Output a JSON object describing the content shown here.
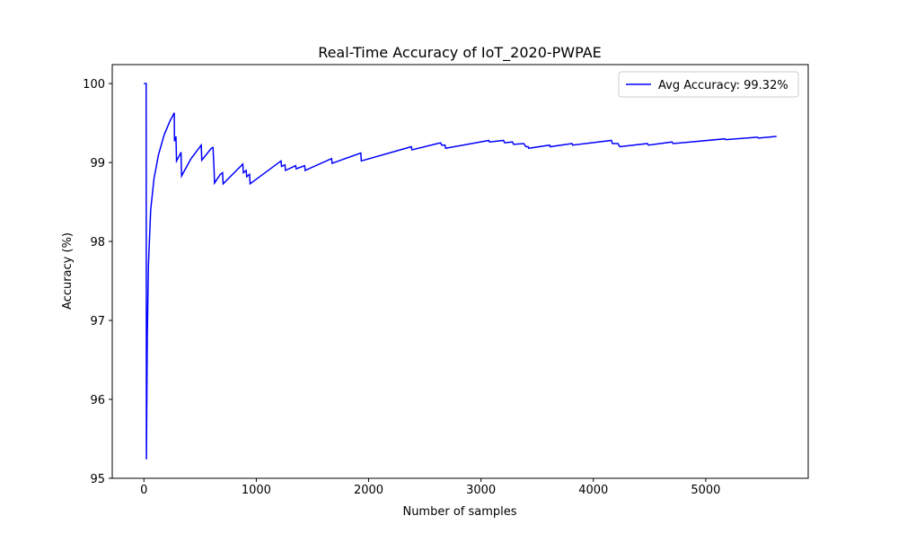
{
  "chart_data": {
    "type": "line",
    "title": "Real-Time Accuracy of IoT_2020-PWPAE",
    "x_label": "Number of samples",
    "y_label": "Accuracy (%)",
    "x": [
      0,
      20,
      22,
      30,
      40,
      60,
      90,
      130,
      180,
      230,
      270,
      272,
      285,
      290,
      320,
      330,
      335,
      420,
      510,
      515,
      600,
      615,
      625,
      628,
      680,
      700,
      705,
      880,
      885,
      910,
      915,
      940,
      945,
      1220,
      1225,
      1255,
      1260,
      1350,
      1355,
      1430,
      1435,
      1670,
      1675,
      1930,
      1935,
      2380,
      2385,
      2640,
      2650,
      2680,
      2685,
      3070,
      3075,
      3200,
      3210,
      3280,
      3290,
      3380,
      3400,
      3420,
      3425,
      3610,
      3615,
      3810,
      3815,
      4160,
      4170,
      4220,
      4230,
      4235,
      4480,
      4490,
      4700,
      4710,
      5170,
      5180,
      5460,
      5470,
      5630
    ],
    "series": [
      {
        "name": "Avg Accuracy: 99.32%",
        "color": "#0000ff",
        "values": [
          100,
          100,
          95.24,
          96.8,
          97.7,
          98.4,
          98.8,
          99.1,
          99.35,
          99.52,
          99.63,
          99.27,
          99.33,
          99.02,
          99.1,
          99.13,
          98.83,
          99.05,
          99.22,
          99.03,
          99.18,
          99.19,
          98.88,
          98.74,
          98.85,
          98.87,
          98.73,
          98.98,
          98.87,
          98.9,
          98.82,
          98.85,
          98.73,
          99.02,
          98.95,
          98.97,
          98.9,
          98.96,
          98.92,
          98.96,
          98.9,
          99.05,
          98.99,
          99.12,
          99.02,
          99.2,
          99.16,
          99.25,
          99.22,
          99.22,
          99.18,
          99.28,
          99.26,
          99.28,
          99.25,
          99.26,
          99.23,
          99.24,
          99.2,
          99.2,
          99.18,
          99.22,
          99.2,
          99.24,
          99.22,
          99.28,
          99.24,
          99.24,
          99.21,
          99.2,
          99.24,
          99.22,
          99.26,
          99.24,
          99.3,
          99.29,
          99.32,
          99.31,
          99.33
        ]
      }
    ],
    "xlim": [
      -282,
      5912
    ],
    "ylim": [
      95.0,
      100.24
    ],
    "xticks": [
      0,
      1000,
      2000,
      3000,
      4000,
      5000
    ],
    "yticks": [
      95,
      96,
      97,
      98,
      99,
      100
    ],
    "legend": "upper right"
  }
}
